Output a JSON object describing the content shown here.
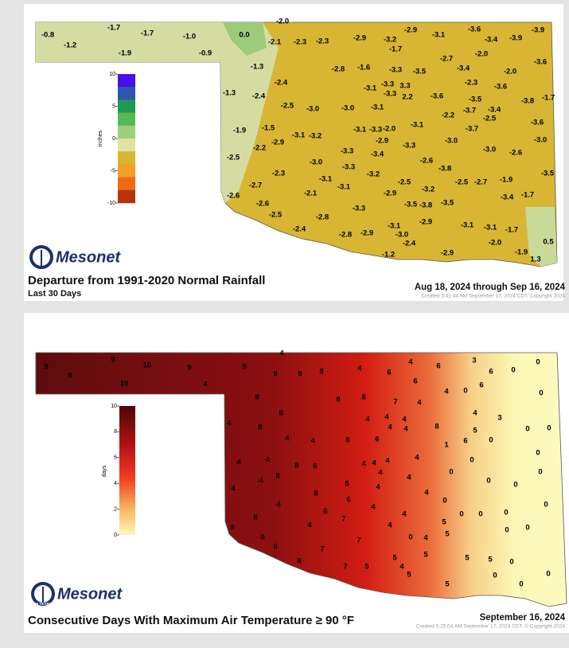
{
  "panels": [
    {
      "title": "Departure from 1991-2020 Normal Rainfall",
      "subtitle": "Last 30 Days",
      "date_range": "Aug 18, 2024 through Sep 16, 2024",
      "credit": "Created 3:41:44 AM September 17, 2024 CDT. Copyright 2024",
      "logo": "Mesonet",
      "legend": {
        "label": "inches",
        "ticks": [
          10,
          5,
          0,
          -5,
          -10
        ]
      },
      "stations": [
        "-0.8",
        "-1.2",
        "-1.7",
        "-1.7",
        "-1.9",
        "-1.0",
        "-0.9",
        "0.0",
        "-2.0",
        "-2.1",
        "-2.3",
        "-2.3",
        "-2.9",
        "-3.2",
        "-2.9",
        "-1.7",
        "-3.1",
        "-3.6",
        "-3.4",
        "-3.9",
        "-3.9",
        "-2.0",
        "-2.7",
        "-3.4",
        "-3.6",
        "-2.0",
        "-1.3",
        "-2.8",
        "-1.6",
        "-3.3",
        "-3.5",
        "-2.3",
        "-3.6",
        "-1.3",
        "-2.4",
        "-2.4",
        "-3.1",
        "-3.3",
        "3.3",
        "-3.3",
        "2.2",
        "-3.6",
        "-3.5",
        "-3.8",
        "-1.7",
        "-2.5",
        "-3.0",
        "-3.0",
        "-3.1",
        "-2.2",
        "-3.7",
        "-3.4",
        "-2.5",
        "-3.6",
        "-1.9",
        "-1.5",
        "-2.2",
        "-2.9",
        "-3.1",
        "-3.2",
        "-3.1",
        "-3.3",
        "-2.0",
        "-2.9",
        "-3.1",
        "-3.7",
        "-3.0",
        "-3.3",
        "-3.0",
        "-2.6",
        "-3.0",
        "-2.5",
        "-3.3",
        "-3.4",
        "-3.0",
        "-2.6",
        "-3.8",
        "-3.3",
        "-3.2",
        "-2.3",
        "-3.1",
        "-3.1",
        "-2.5",
        "-3.2",
        "-2.5",
        "-2.7",
        "-1.9",
        "-3.5",
        "-2.7",
        "-2.1",
        "-2.9",
        "-3.4",
        "-1.7",
        "-2.6",
        "-2.6",
        "-3.5",
        "-3.8",
        "-3.5",
        "-2.5",
        "-2.8",
        "-3.3",
        "-3.1",
        "-2.9",
        "-3.1",
        "-3.1",
        "-1.7",
        "-2.4",
        "-2.8",
        "-2.9",
        "-3.0",
        "-2.4",
        "-2.0",
        "0.5",
        "-2.9",
        "-1.2",
        "-1.9",
        "1.3"
      ]
    },
    {
      "title": "Consecutive Days With Maximum Air Temperature ≥ 90 °F",
      "date_range": "September 16, 2024",
      "credit": "Created 5:25:04 AM September 17, 2024 CDT. © Copyright 2024",
      "logo": "Mesonet",
      "badge": "30 YEARS",
      "legend": {
        "label": "days",
        "ticks": [
          10,
          8,
          6,
          4,
          2,
          0
        ]
      },
      "stations": [
        9,
        9,
        9,
        10,
        10,
        9,
        4,
        4,
        9,
        9,
        9,
        8,
        4,
        6,
        4,
        6,
        3,
        6,
        0,
        0,
        6,
        4,
        0,
        6,
        0,
        8,
        8,
        8,
        7,
        4,
        4,
        3,
        4,
        8,
        8,
        4,
        4,
        4,
        4,
        4,
        8,
        5,
        0,
        0,
        4,
        4,
        8,
        6,
        1,
        6,
        0,
        0,
        4,
        4,
        4,
        8,
        8,
        6,
        4,
        4,
        4,
        4,
        4,
        0,
        0,
        4,
        0,
        0,
        0,
        4,
        5,
        4,
        8,
        4,
        0,
        6,
        4,
        4,
        6,
        7,
        4,
        5,
        0,
        0,
        0,
        0,
        8,
        4,
        4,
        0,
        0,
        8,
        8,
        0,
        4,
        5,
        8,
        7,
        7,
        5,
        5,
        5,
        5,
        0,
        8,
        7,
        5,
        4,
        5,
        0,
        0,
        5,
        0
      ]
    }
  ]
}
